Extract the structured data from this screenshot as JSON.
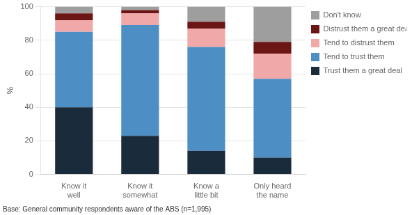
{
  "chart_data": {
    "type": "bar",
    "stacked": true,
    "categories": [
      "Know it\nwell",
      "Know it\nsomewhat",
      "Know a\nlittle bit",
      "Only heard\nthe name"
    ],
    "series": [
      {
        "name": "Trust them a great deal",
        "color": "#1a2b3c",
        "values": [
          40,
          23,
          14,
          10
        ]
      },
      {
        "name": "Tend to trust them",
        "color": "#4d8ec4",
        "values": [
          45,
          66,
          62,
          47
        ]
      },
      {
        "name": "Tend to distrust them",
        "color": "#f0a8a8",
        "values": [
          7,
          7,
          11,
          15
        ]
      },
      {
        "name": "Distrust them a great deal",
        "color": "#6b1515",
        "values": [
          4,
          2,
          4,
          7
        ]
      },
      {
        "name": "Don't know",
        "color": "#9e9e9e",
        "values": [
          4,
          2,
          9,
          21
        ]
      }
    ],
    "y_label": "%",
    "ylim": [
      0,
      100
    ],
    "yticks": [
      0,
      20,
      40,
      60,
      80,
      100
    ],
    "grid": true,
    "legend": "right",
    "annotations": [
      "Base: General community respondents aware of the ABS (n=1,995)"
    ]
  }
}
